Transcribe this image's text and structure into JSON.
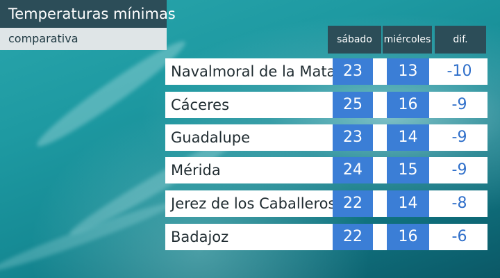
{
  "header": {
    "title": "Temperaturas mínimas",
    "subtitle": "comparativa"
  },
  "columns": {
    "saturday": "sábado",
    "wednesday": "miércoles",
    "difference": "dif."
  },
  "rows": [
    {
      "city": "Navalmoral de la Mata",
      "saturday": "23",
      "wednesday": "13",
      "difference": "-10"
    },
    {
      "city": "Cáceres",
      "saturday": "25",
      "wednesday": "16",
      "difference": "-9"
    },
    {
      "city": "Guadalupe",
      "saturday": "23",
      "wednesday": "14",
      "difference": "-9"
    },
    {
      "city": "Mérida",
      "saturday": "24",
      "wednesday": "15",
      "difference": "-9"
    },
    {
      "city": "Jerez de los Caballeros",
      "saturday": "22",
      "wednesday": "14",
      "difference": "-8"
    },
    {
      "city": "Badajoz",
      "saturday": "22",
      "wednesday": "16",
      "difference": "-6"
    }
  ],
  "colors": {
    "header_bg": "#2c4d58",
    "subtitle_bg": "#dfe5e7",
    "value_cell": "#3b7ed6",
    "difference_text": "#2f6fca",
    "background": "#1e9aa2"
  }
}
